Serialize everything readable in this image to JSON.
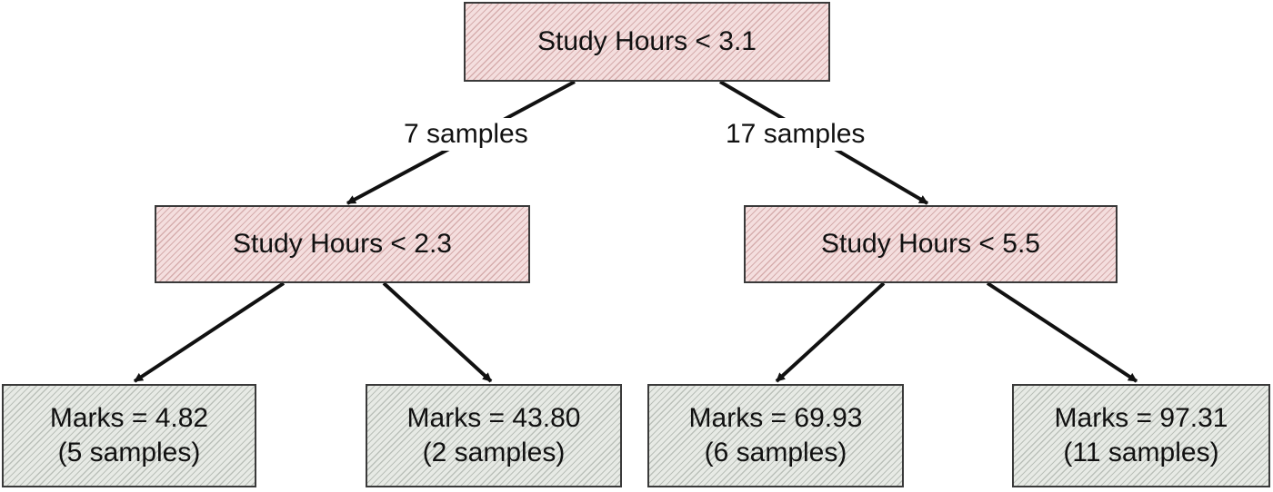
{
  "root": {
    "condition": "Study Hours < 3.1"
  },
  "edges": {
    "root_left": "7 samples",
    "root_right": "17 samples"
  },
  "left_split": {
    "condition": "Study Hours < 2.3"
  },
  "right_split": {
    "condition": "Study Hours < 5.5"
  },
  "leaves": [
    {
      "value": "Marks = 4.82",
      "samples": "(5 samples)"
    },
    {
      "value": "Marks = 43.80",
      "samples": "(2 samples)"
    },
    {
      "value": "Marks = 69.93",
      "samples": "(6 samples)"
    },
    {
      "value": "Marks = 97.31",
      "samples": "(11 samples)"
    }
  ],
  "colors": {
    "split_fill": "#f4dede",
    "leaf_fill": "#e7eae5",
    "stroke": "#111111"
  }
}
